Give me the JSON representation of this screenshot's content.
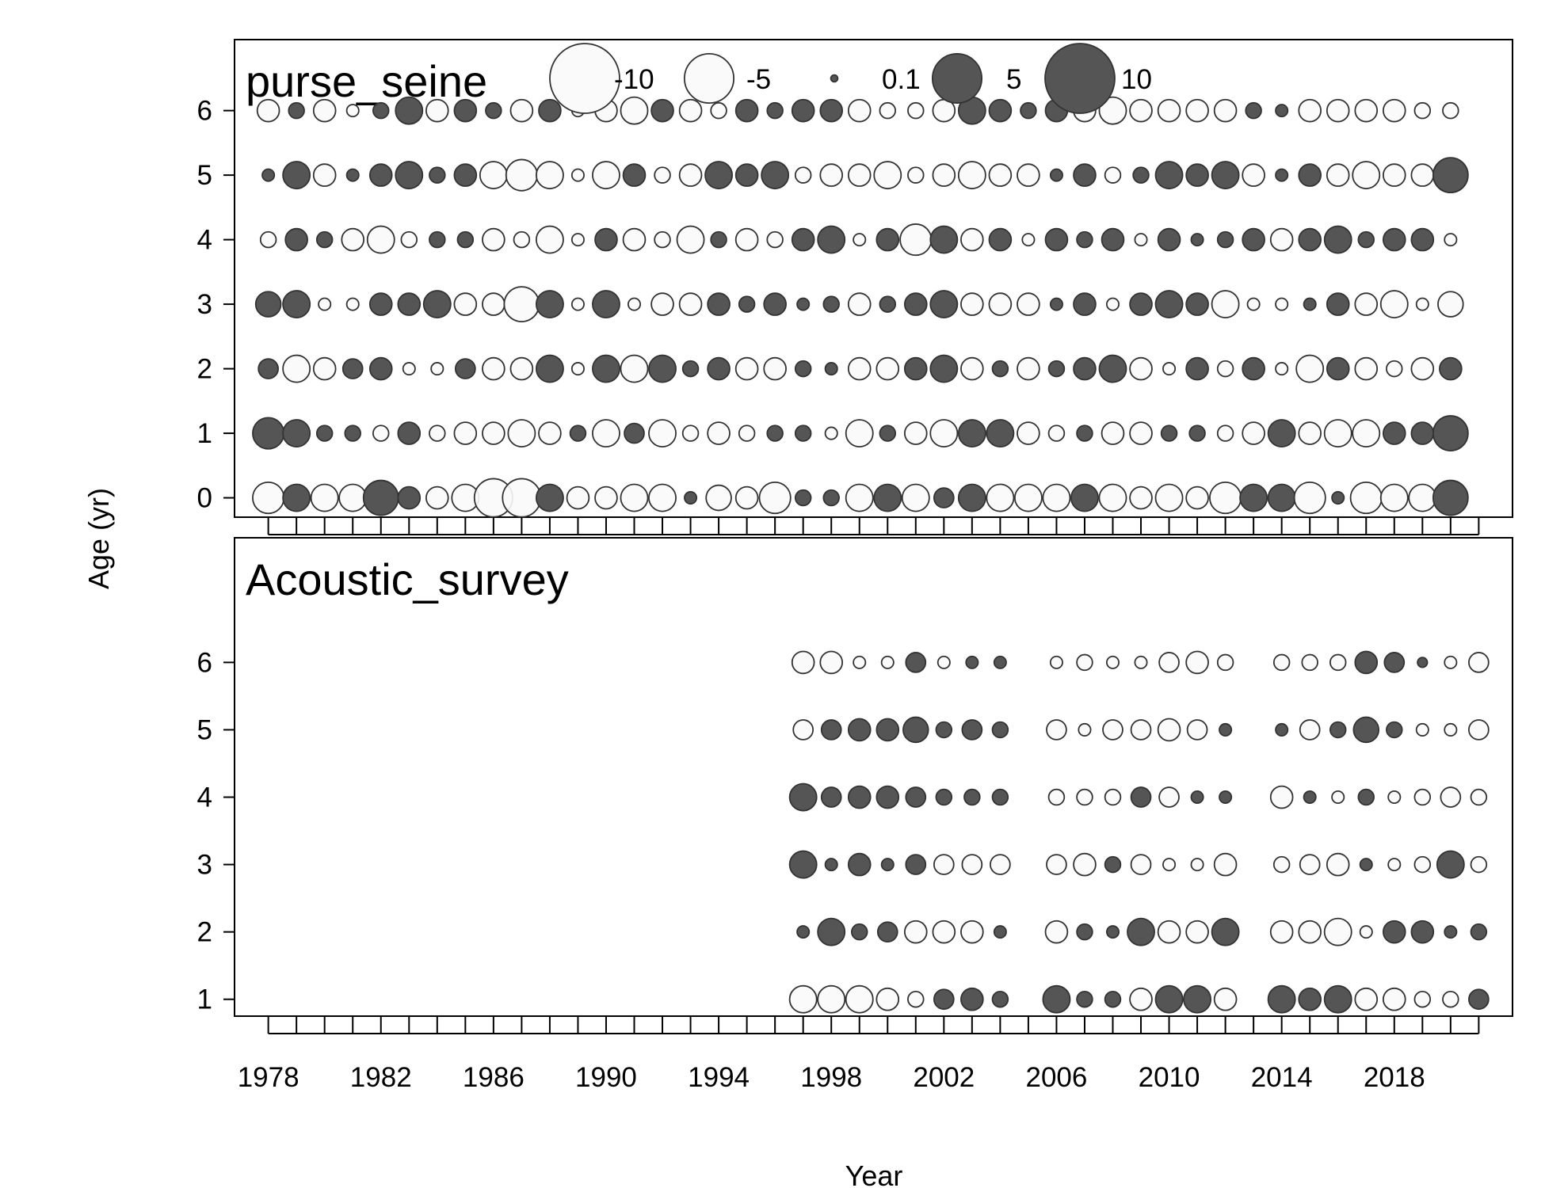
{
  "chart_data": {
    "type": "bubble",
    "xlabel": "Year",
    "ylabel": "Age (yr)",
    "x_tick_labels": [
      "1978",
      "1982",
      "1986",
      "1990",
      "1994",
      "1998",
      "2002",
      "2006",
      "2010",
      "2014",
      "2018"
    ],
    "x_tick_values": [
      1978,
      1982,
      1986,
      1990,
      1994,
      1998,
      2002,
      2006,
      2010,
      2014,
      2018
    ],
    "xlim": [
      1976.8,
      2022.2
    ],
    "legend": {
      "values": [
        -10,
        -5,
        0.1,
        5,
        10
      ],
      "labels": [
        "-10",
        "-5",
        "0.1",
        "5",
        "10"
      ],
      "negative_color": "#fafafa",
      "positive_color": "#555555"
    },
    "panels": [
      {
        "name": "purse_seine",
        "ages": [
          0,
          1,
          2,
          3,
          4,
          5,
          6
        ],
        "ylim": [
          -0.3,
          7.1
        ],
        "years": [
          1978,
          1979,
          1980,
          1981,
          1982,
          1983,
          1984,
          1985,
          1986,
          1987,
          1988,
          1989,
          1990,
          1991,
          1992,
          1993,
          1994,
          1995,
          1996,
          1997,
          1998,
          1999,
          2000,
          2001,
          2002,
          2003,
          2004,
          2005,
          2006,
          2007,
          2008,
          2009,
          2010,
          2011,
          2012,
          2013,
          2014,
          2015,
          2016,
          2017,
          2018,
          2019,
          2020
        ],
        "residuals": [
          [
            -2,
            1.5,
            -1.5,
            -1.5,
            2.5,
            1,
            -1,
            -1.5,
            -3,
            -3,
            1.5,
            -1,
            -1,
            -1.5,
            -1.5,
            0.3,
            -1.3,
            -1,
            -2,
            0.5,
            0.5,
            -1.5,
            1.5,
            -1.5,
            0.8,
            1.5,
            -1.5,
            -1.5,
            -1.5,
            1.5,
            -1.5,
            -1,
            -1.5,
            -1,
            -2,
            1.5,
            1.5,
            -2,
            0.3,
            -2,
            -1.5,
            -1.5,
            2.5
          ],
          [
            2,
            1.5,
            0.5,
            0.5,
            -0.5,
            1,
            -0.5,
            -1,
            -1,
            -1.5,
            -1,
            0.5,
            -1.5,
            0.8,
            -1.5,
            -0.5,
            -1,
            -0.5,
            0.5,
            0.5,
            -0.3,
            -1.5,
            0.5,
            -1,
            -1.5,
            1.5,
            1.5,
            -1,
            -0.5,
            0.5,
            -1,
            -1,
            0.5,
            0.5,
            -0.5,
            -1,
            1.5,
            -1,
            -1.5,
            -1.5,
            1,
            1,
            2.5
          ],
          [
            0.8,
            -1.5,
            -1,
            0.8,
            1,
            -0.3,
            -0.3,
            0.8,
            -1,
            -1,
            1.5,
            -0.3,
            1.5,
            -1.5,
            1.5,
            0.5,
            1,
            -1,
            -1,
            0.5,
            0.3,
            -1,
            -1,
            1,
            1.5,
            -1,
            0.5,
            -1,
            0.5,
            1,
            1.5,
            -1,
            -0.3,
            1,
            -0.5,
            1,
            -0.3,
            -1.5,
            1,
            -1,
            -0.5,
            -1,
            1
          ],
          [
            1.3,
            1.5,
            -0.3,
            -0.3,
            1,
            1,
            1.5,
            -1,
            -1,
            -2.5,
            1.5,
            -0.3,
            1.5,
            -0.3,
            -1,
            -1,
            1,
            0.5,
            1,
            0.3,
            0.5,
            -1,
            0.5,
            1,
            1.5,
            -1,
            -1,
            -1,
            0.3,
            1,
            -0.3,
            1,
            1.5,
            1,
            -1.5,
            -0.3,
            -0.3,
            0.3,
            1,
            -1,
            -1.5,
            -0.3,
            -1.3
          ],
          [
            -0.5,
            1,
            0.5,
            -1,
            -1.5,
            -0.5,
            0.5,
            0.5,
            -1,
            -0.5,
            -1.5,
            -0.3,
            1,
            -1,
            -0.5,
            -1.5,
            0.5,
            -1,
            -0.5,
            1,
            1.5,
            -0.3,
            1,
            -2,
            1.5,
            -1,
            1,
            -0.3,
            1,
            0.5,
            1,
            -0.3,
            1,
            0.3,
            0.5,
            1,
            -1,
            1,
            1.5,
            0.5,
            1,
            1,
            -0.3
          ],
          [
            0.3,
            1.5,
            -1,
            0.3,
            1,
            1.5,
            0.5,
            1,
            -1.5,
            -2,
            -1.5,
            -0.3,
            -1.5,
            1,
            -0.5,
            -1,
            1.5,
            1,
            1.5,
            -0.5,
            -1,
            -1,
            -1.5,
            -0.5,
            -1,
            -1.5,
            -1,
            -1,
            0.3,
            1,
            -0.5,
            0.5,
            1.5,
            1,
            1.5,
            -1,
            0.3,
            1,
            -1,
            -1.5,
            -1,
            -1,
            2.5
          ],
          [
            -1,
            0.5,
            -1,
            -0.3,
            0.5,
            1.5,
            -1,
            1,
            0.5,
            -1,
            1,
            -0.3,
            -1,
            -1.5,
            1,
            -1,
            -0.5,
            1,
            0.5,
            1,
            1,
            -1,
            -0.5,
            -0.5,
            -1,
            1.5,
            1,
            0.5,
            1,
            -1,
            -1.5,
            -1,
            -1,
            -1,
            -1,
            0.5,
            0.3,
            -1,
            -1,
            -1,
            -1,
            -0.5,
            -0.5
          ]
        ]
      },
      {
        "name": "Acoustic_survey",
        "ages": [
          1,
          2,
          3,
          4,
          5,
          6
        ],
        "ylim": [
          0.75,
          7.85
        ],
        "years": [
          1997,
          1998,
          1999,
          2000,
          2001,
          2002,
          2003,
          2004,
          2006,
          2007,
          2008,
          2009,
          2010,
          2011,
          2012,
          2014,
          2015,
          2016,
          2017,
          2018,
          2019,
          2020,
          2021
        ],
        "residuals": [
          [
            -1.5,
            -1.5,
            -1.5,
            -1,
            -0.5,
            0.8,
            1,
            0.5,
            1.5,
            0.5,
            0.5,
            -1,
            1.5,
            1.5,
            -1,
            1.5,
            1,
            1.5,
            -1,
            -1,
            -0.5,
            -0.5,
            0.8
          ],
          [
            0.3,
            1.5,
            0.5,
            0.8,
            -1,
            -1,
            -1,
            0.3,
            -1,
            0.5,
            0.3,
            1.5,
            -1,
            -1,
            1.5,
            -1,
            -1,
            -1.5,
            -0.3,
            1,
            1,
            0.3,
            0.5
          ],
          [
            1.5,
            0.3,
            1,
            0.3,
            0.8,
            -0.8,
            -0.8,
            -0.8,
            -0.8,
            -1,
            0.5,
            -0.8,
            -0.3,
            -0.3,
            -1,
            -0.5,
            -0.8,
            -1,
            0.3,
            -0.3,
            -0.5,
            1.5,
            -0.5
          ],
          [
            1.5,
            0.8,
            1,
            1,
            0.8,
            0.5,
            0.5,
            0.5,
            -0.5,
            -0.5,
            -0.5,
            0.8,
            -0.8,
            0.3,
            0.3,
            -1,
            0.3,
            -0.3,
            0.5,
            -0.3,
            -0.5,
            -0.8,
            -0.5
          ],
          [
            -0.8,
            0.8,
            1,
            1,
            1.3,
            0.5,
            0.8,
            0.5,
            -0.8,
            -0.3,
            -0.8,
            -0.8,
            -1,
            -0.8,
            0.3,
            0.3,
            -0.8,
            0.5,
            1.3,
            0.5,
            -0.3,
            -0.3,
            -0.8
          ],
          [
            -1,
            -1,
            -0.3,
            -0.3,
            0.8,
            -0.3,
            0.3,
            0.3,
            -0.3,
            -0.5,
            -0.3,
            -0.3,
            -0.8,
            -1,
            -0.5,
            -0.5,
            -0.5,
            -0.5,
            1,
            0.8,
            0.2,
            -0.3,
            -0.8
          ]
        ]
      }
    ]
  }
}
